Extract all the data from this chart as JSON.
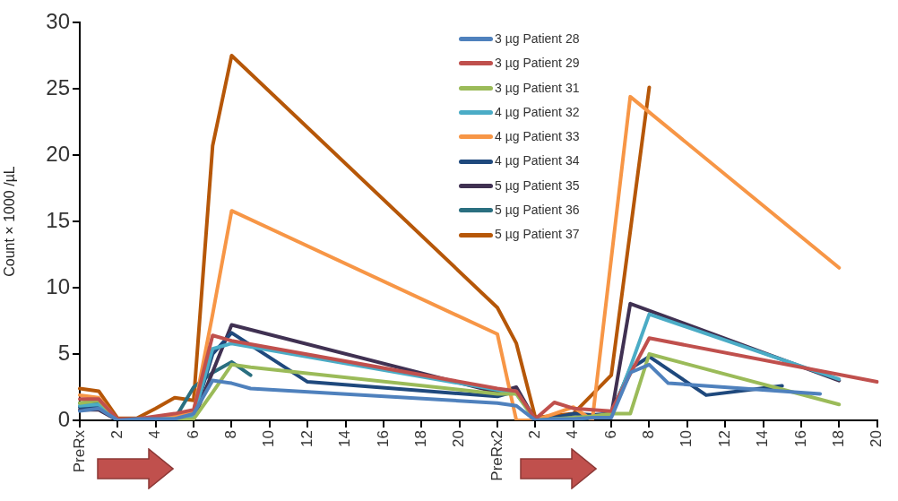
{
  "chart_data": {
    "type": "line",
    "ylabel": "Count × 1000 /µL",
    "ylim": [
      0,
      30
    ],
    "yticks": [
      0,
      5,
      10,
      15,
      20,
      25,
      30
    ],
    "grid": false,
    "legend": "top",
    "categories": [
      "PreRx",
      null,
      "2",
      null,
      "4",
      null,
      "6",
      null,
      "8",
      null,
      "10",
      null,
      "12",
      null,
      "14",
      null,
      "16",
      null,
      "18",
      null,
      "20",
      null,
      "PreRx2",
      null,
      "2",
      null,
      "4",
      null,
      "6",
      null,
      "8",
      null,
      "10",
      null,
      "12",
      null,
      "14",
      null,
      "16",
      null,
      "18",
      null,
      "20"
    ],
    "series": [
      {
        "name": "3 µg Patient 28",
        "color": "#4f81bd",
        "values": [
          0.7,
          0.9,
          0,
          0.1,
          0.1,
          0.1,
          0.5,
          3.0,
          2.8,
          2.4,
          null,
          null,
          null,
          null,
          null,
          null,
          null,
          null,
          null,
          null,
          null,
          null,
          1.3,
          1.1,
          0,
          0.1,
          0.1,
          0.2,
          0.2,
          3.6,
          4.2,
          2.8,
          null,
          null,
          null,
          null,
          null,
          null,
          null,
          2.0,
          null,
          null,
          null
        ]
      },
      {
        "name": "3 µg Patient 29",
        "color": "#c0504d",
        "values": [
          1.6,
          1.6,
          0.1,
          0.1,
          0.3,
          0.5,
          0.8,
          6.4,
          6.0,
          null,
          null,
          null,
          null,
          null,
          null,
          null,
          null,
          null,
          null,
          null,
          null,
          null,
          2.4,
          2.2,
          0.1,
          1.35,
          0.9,
          0.8,
          0.7,
          3.5,
          6.2,
          null,
          null,
          null,
          null,
          null,
          null,
          null,
          null,
          null,
          null,
          null,
          2.9
        ]
      },
      {
        "name": "3 µg Patient 31",
        "color": "#9bbb59",
        "values": [
          1.3,
          1.5,
          0,
          0,
          0,
          0,
          0.1,
          2.1,
          4.2,
          4.0,
          null,
          null,
          null,
          null,
          null,
          null,
          null,
          null,
          null,
          null,
          null,
          null,
          2.0,
          2.0,
          0,
          0.1,
          0.2,
          0.3,
          0.5,
          0.5,
          5.0,
          null,
          null,
          null,
          null,
          null,
          null,
          null,
          null,
          null,
          1.2,
          null,
          null
        ]
      },
      {
        "name": "4 µg Patient 32",
        "color": "#4bacc6",
        "values": [
          1.1,
          1.2,
          0,
          0,
          0.1,
          0.1,
          0.3,
          5.4,
          5.8,
          null,
          null,
          null,
          null,
          null,
          null,
          null,
          null,
          null,
          null,
          null,
          null,
          null,
          2.3,
          2.0,
          0,
          0.1,
          0.1,
          0.2,
          0.3,
          4.0,
          8.0,
          null,
          null,
          null,
          null,
          null,
          null,
          null,
          null,
          null,
          3.1,
          null,
          null
        ]
      },
      {
        "name": "4 µg Patient 33",
        "color": "#f79646",
        "values": [
          1.9,
          1.7,
          0,
          0,
          0.1,
          0.3,
          0.6,
          8.0,
          15.8,
          null,
          null,
          null,
          null,
          null,
          null,
          null,
          null,
          null,
          null,
          null,
          null,
          null,
          6.5,
          0,
          0,
          0.5,
          1.0,
          0,
          null,
          24.4,
          null,
          null,
          null,
          null,
          null,
          null,
          null,
          null,
          null,
          null,
          11.5,
          null,
          null
        ]
      },
      {
        "name": "4 µg Patient 34",
        "color": "#1f497d",
        "values": [
          1.0,
          1.1,
          0,
          0,
          0.1,
          0.1,
          0.3,
          5.0,
          6.6,
          null,
          null,
          null,
          2.9,
          null,
          null,
          null,
          null,
          null,
          null,
          null,
          null,
          null,
          1.8,
          2.2,
          0,
          0.2,
          0.5,
          0.4,
          0.5,
          3.9,
          4.8,
          null,
          null,
          1.9,
          null,
          null,
          null,
          2.6,
          null,
          null,
          null,
          null,
          null
        ]
      },
      {
        "name": "5 µg Patient 35",
        "color": "#403152",
        "values": [
          0.8,
          0.8,
          0,
          0,
          0,
          0,
          0.1,
          null,
          7.2,
          null,
          null,
          null,
          null,
          null,
          null,
          null,
          null,
          null,
          null,
          null,
          null,
          null,
          2.1,
          2.5,
          0,
          0.1,
          0.2,
          0.3,
          0.4,
          8.8,
          null,
          null,
          null,
          null,
          null,
          null,
          null,
          null,
          null,
          null,
          3.0,
          null,
          null
        ]
      },
      {
        "name": "5 µg Patient 36",
        "color": "#2a6f80",
        "values": [
          1.3,
          1.3,
          0,
          0,
          0,
          0.1,
          2.5,
          3.6,
          4.4,
          3.4,
          null,
          null,
          null,
          null,
          null,
          null,
          null,
          null,
          null,
          null,
          null,
          null,
          null,
          null,
          null,
          null,
          null,
          null,
          null,
          null,
          null,
          null,
          null,
          null,
          null,
          null,
          null,
          null,
          null,
          null,
          null,
          null,
          null
        ]
      },
      {
        "name": "5 µg Patient 37",
        "color": "#b65708",
        "values": [
          2.4,
          2.2,
          0.15,
          0.15,
          0.9,
          1.7,
          1.5,
          20.7,
          27.5,
          null,
          null,
          null,
          null,
          null,
          null,
          null,
          null,
          null,
          null,
          null,
          null,
          null,
          8.5,
          5.8,
          0.2,
          null,
          0.5,
          null,
          3.4,
          null,
          25.1,
          null,
          null,
          null,
          null,
          null,
          null,
          null,
          null,
          null,
          null,
          null,
          null
        ]
      }
    ]
  }
}
